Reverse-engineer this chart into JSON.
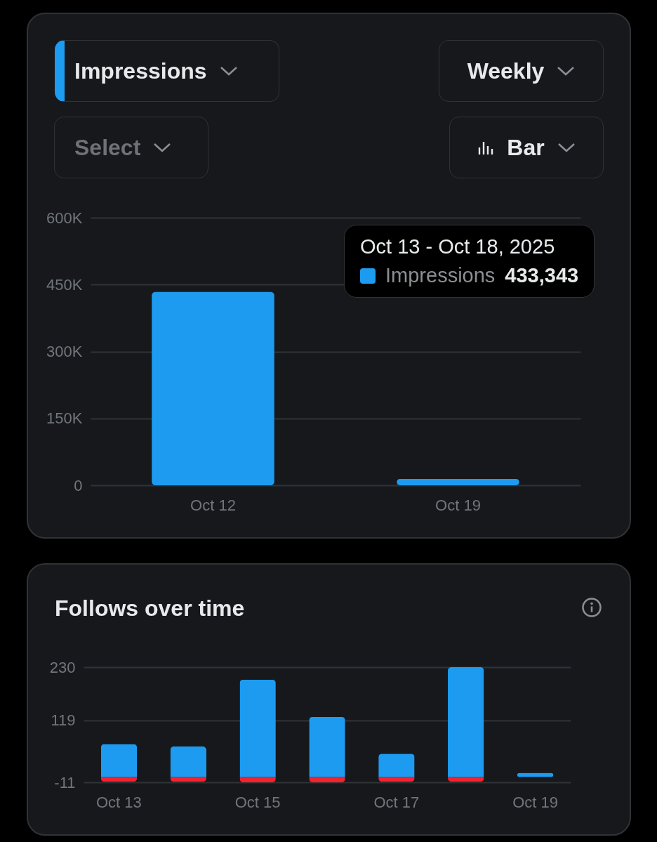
{
  "chart_data": [
    {
      "type": "bar",
      "categories": [
        "Oct 12",
        "Oct 19"
      ],
      "values": [
        433343,
        14000
      ],
      "color": "#1d9bf0",
      "ylim": [
        0,
        600000
      ],
      "yticks": [
        0,
        {
          "value": 150000,
          "label": "150K"
        },
        {
          "value": 300000,
          "label": "300K"
        },
        {
          "value": 450000,
          "label": "450K"
        },
        {
          "value": 600000,
          "label": "600K"
        }
      ],
      "grid": "y",
      "annotations": [
        "Impressions",
        "Weekly",
        "Select",
        "Bar",
        "Oct 13 - Oct 18, 2025",
        "Impressions",
        "433,343"
      ]
    },
    {
      "type": "bar",
      "title": "Follows over time",
      "categories": [
        "Oct 13",
        null,
        "Oct 15",
        null,
        "Oct 17",
        null,
        "Oct 19"
      ],
      "stacked": true,
      "series": [
        {
          "color": "#1d9bf0",
          "values": [
            69,
            64,
            204,
            126,
            49,
            230,
            9
          ]
        },
        {
          "color": "#f4212e",
          "values": [
            -10,
            -10,
            -11,
            -11,
            -10,
            -10,
            null
          ]
        }
      ],
      "ylim": [
        -11,
        230
      ],
      "yticks": [
        -11,
        119,
        230
      ],
      "grid": "y"
    }
  ]
}
